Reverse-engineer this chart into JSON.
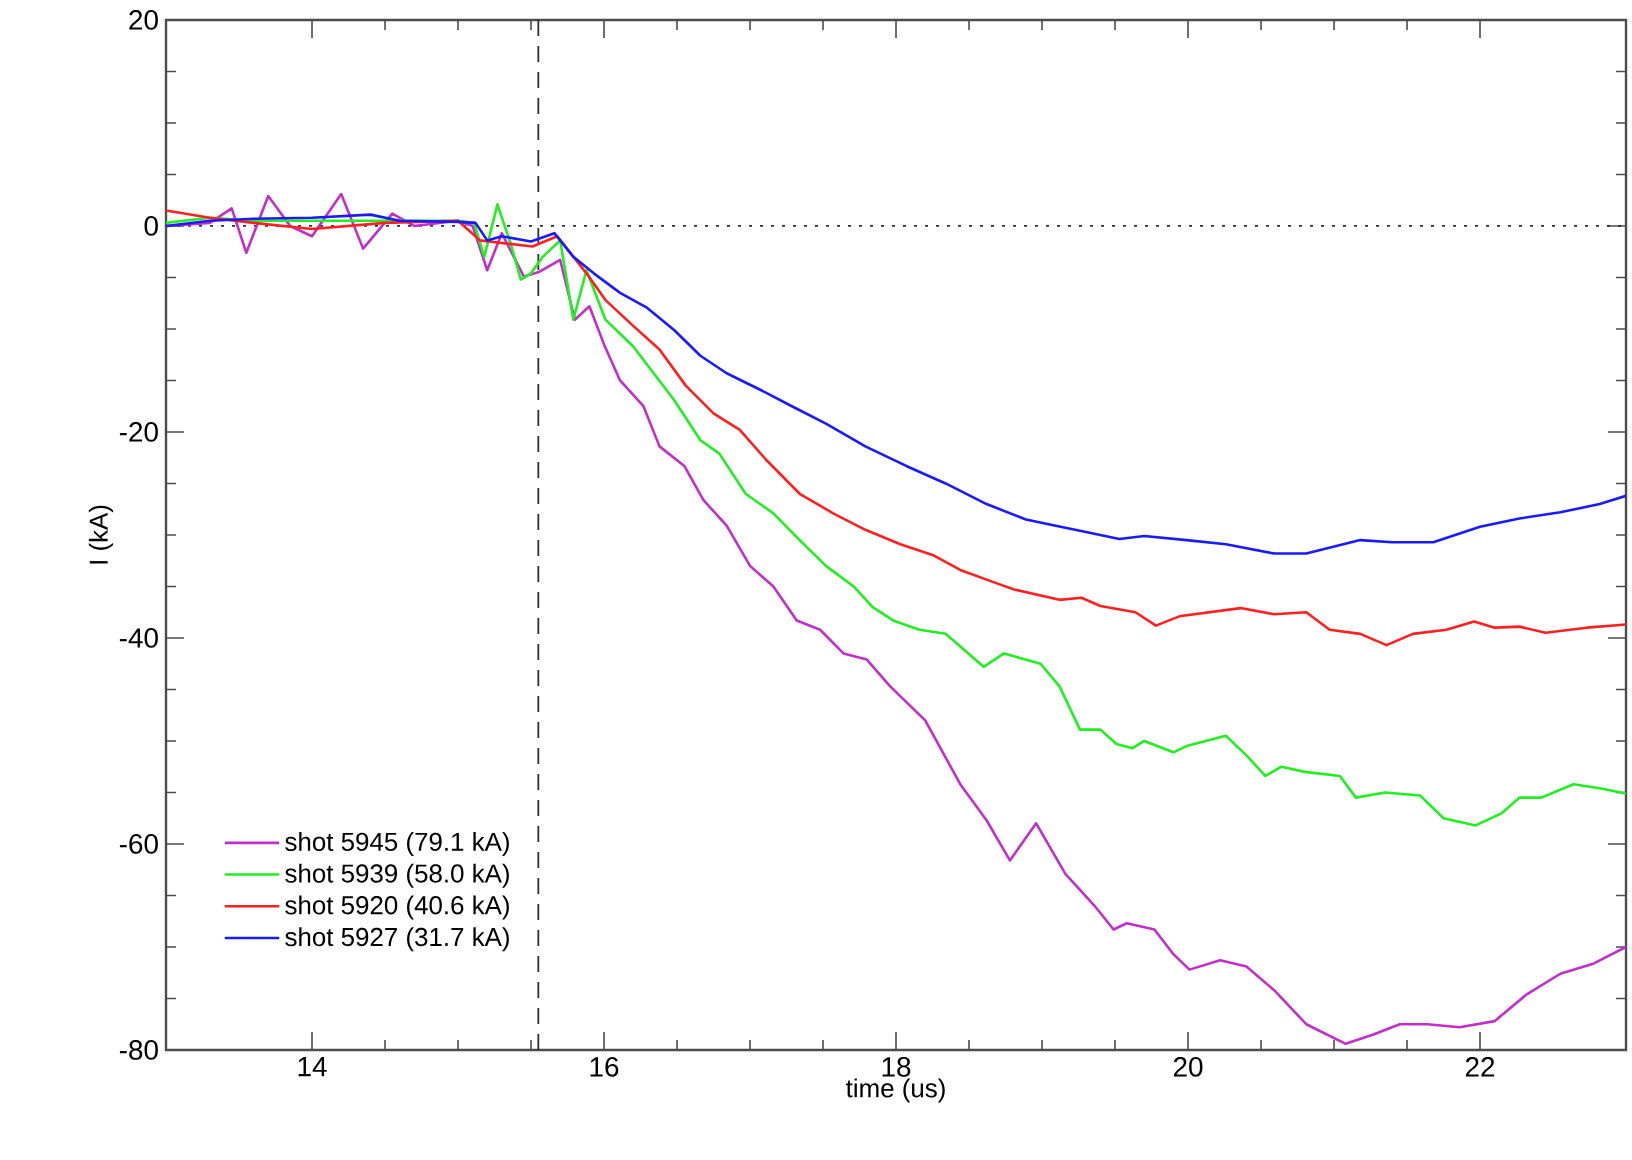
{
  "chart_data": {
    "type": "line",
    "xlabel": "time (us)",
    "ylabel": "I (kA)",
    "xlim": [
      13,
      23
    ],
    "ylim": [
      -80,
      20
    ],
    "xticks": [
      14,
      16,
      18,
      20,
      22
    ],
    "yticks": [
      -80,
      -60,
      -40,
      -20,
      0,
      20
    ],
    "legend": "bottom left",
    "line_style": "solid",
    "ref_lines": [
      {
        "axis": "x",
        "value": 15.55,
        "line_style": "dashed",
        "color": "#303030"
      },
      {
        "axis": "y",
        "value": 0,
        "line_style": "dotted",
        "color": "#303030"
      }
    ],
    "series": [
      {
        "name": "shot 5945 (79.1 kA)",
        "color": "#c030c8",
        "x": [
          13,
          13.3,
          13.45,
          13.55,
          13.7,
          13.85,
          14.0,
          14.2,
          14.35,
          14.55,
          14.7,
          15.0,
          15.1,
          15.2,
          15.3,
          15.45,
          15.55,
          15.7,
          15.8,
          15.9,
          16.0,
          16.11,
          16.27,
          16.38,
          16.55,
          16.68,
          16.84,
          17.0,
          17.16,
          17.32,
          17.48,
          17.64,
          17.8,
          17.96,
          18.2,
          18.44,
          18.62,
          18.78,
          18.96,
          19.16,
          19.36,
          19.49,
          19.58,
          19.77,
          19.9,
          20.01,
          20.22,
          20.4,
          20.59,
          20.81,
          21.08,
          21.27,
          21.45,
          21.64,
          21.86,
          22.1,
          22.32,
          22.55,
          22.78,
          23
        ],
        "values": [
          0,
          0.3,
          1.7,
          -2.6,
          2.9,
          0,
          -1,
          3.1,
          -2.2,
          1.2,
          0,
          0.5,
          0,
          -4.3,
          -0.7,
          -4.9,
          -4.5,
          -3.3,
          -9.1,
          -7.8,
          -11.5,
          -15,
          -17.5,
          -21.4,
          -23.3,
          -26.6,
          -29.1,
          -33,
          -35,
          -38.3,
          -39.2,
          -41.5,
          -42.1,
          -44.7,
          -48,
          -54.2,
          -57.7,
          -61.6,
          -58,
          -62.9,
          -66,
          -68.3,
          -67.7,
          -68.3,
          -70.7,
          -72.2,
          -71.3,
          -71.9,
          -74.2,
          -77.5,
          -79.4,
          -78.5,
          -77.5,
          -77.5,
          -77.8,
          -77.2,
          -74.6,
          -72.6,
          -71.6,
          -70
        ]
      },
      {
        "name": "shot 5939 (58.0 kA)",
        "color": "#22ee22",
        "x": [
          13,
          13.3,
          13.6,
          14,
          14.5,
          15,
          15.11,
          15.18,
          15.27,
          15.36,
          15.43,
          15.5,
          15.58,
          15.7,
          15.79,
          15.88,
          16.01,
          16.2,
          16.34,
          16.48,
          16.66,
          16.79,
          16.97,
          17.16,
          17.34,
          17.52,
          17.71,
          17.84,
          17.98,
          18.16,
          18.34,
          18.6,
          18.74,
          18.99,
          19.12,
          19.26,
          19.4,
          19.51,
          19.62,
          19.7,
          19.9,
          19.99,
          20.26,
          20.4,
          20.53,
          20.64,
          20.8,
          21.04,
          21.15,
          21.35,
          21.59,
          21.75,
          21.97,
          22.15,
          22.27,
          22.42,
          22.64,
          22.82,
          23
        ],
        "values": [
          0.3,
          0.8,
          0.5,
          0.5,
          0.5,
          0.5,
          0.3,
          -3,
          2.1,
          -1.7,
          -5.2,
          -4.6,
          -3,
          -1.4,
          -9.1,
          -4.3,
          -9.1,
          -11.7,
          -14.3,
          -16.9,
          -20.8,
          -22.1,
          -26,
          -27.9,
          -30.5,
          -33,
          -35,
          -37,
          -38.3,
          -39.2,
          -39.6,
          -42.8,
          -41.5,
          -42.5,
          -44.7,
          -48.9,
          -48.9,
          -50.3,
          -50.7,
          -50,
          -51.1,
          -50.5,
          -49.5,
          -51.4,
          -53.4,
          -52.5,
          -53,
          -53.4,
          -55.5,
          -55,
          -55.3,
          -57.5,
          -58.2,
          -57,
          -55.5,
          -55.5,
          -54.2,
          -54.6,
          -55.1
        ]
      },
      {
        "name": "shot 5920 (40.6 kA)",
        "color": "#ff2020",
        "x": [
          13,
          13.3,
          13.6,
          14,
          14.5,
          15,
          15.15,
          15.33,
          15.51,
          15.68,
          15.88,
          16.01,
          16.2,
          16.38,
          16.56,
          16.75,
          16.93,
          17.11,
          17.34,
          17.57,
          17.79,
          18.03,
          18.26,
          18.44,
          18.71,
          18.81,
          19.12,
          19.27,
          19.4,
          19.64,
          19.78,
          19.94,
          20.36,
          20.59,
          20.81,
          20.97,
          21.18,
          21.36,
          21.54,
          21.77,
          21.96,
          22.1,
          22.27,
          22.45,
          22.73,
          23
        ],
        "values": [
          1.5,
          0.8,
          0.3,
          -0.3,
          0.3,
          0.5,
          -1.4,
          -1.7,
          -2,
          -1,
          -4.6,
          -7.2,
          -9.7,
          -12,
          -15.5,
          -18.2,
          -19.8,
          -22.7,
          -26,
          -27.9,
          -29.5,
          -30.9,
          -32,
          -33.4,
          -34.8,
          -35.3,
          -36.3,
          -36.1,
          -36.9,
          -37.5,
          -38.8,
          -37.9,
          -37.1,
          -37.7,
          -37.5,
          -39.2,
          -39.6,
          -40.7,
          -39.6,
          -39.2,
          -38.4,
          -39,
          -38.9,
          -39.5,
          -39,
          -38.7
        ]
      },
      {
        "name": "shot 5927 (31.7 kA)",
        "color": "#1a1aff",
        "x": [
          13,
          13.3,
          13.6,
          14,
          14.4,
          14.6,
          15,
          15.12,
          15.2,
          15.3,
          15.5,
          15.66,
          15.79,
          15.93,
          16.11,
          16.29,
          16.48,
          16.66,
          16.84,
          17.07,
          17.3,
          17.52,
          17.79,
          18.07,
          18.34,
          18.62,
          18.89,
          19.16,
          19.26,
          19.53,
          19.7,
          19.99,
          20.26,
          20.59,
          20.81,
          21.18,
          21.4,
          21.68,
          22.0,
          22.27,
          22.55,
          22.82,
          23
        ],
        "values": [
          0,
          0.5,
          0.7,
          0.8,
          1.1,
          0.5,
          0.4,
          0.3,
          -1.4,
          -1,
          -1.5,
          -0.7,
          -3,
          -4.6,
          -6.5,
          -7.9,
          -10.1,
          -12.6,
          -14.3,
          -15.9,
          -17.6,
          -19.2,
          -21.4,
          -23.3,
          -25,
          -27,
          -28.5,
          -29.3,
          -29.6,
          -30.4,
          -30.1,
          -30.5,
          -30.9,
          -31.8,
          -31.8,
          -30.5,
          -30.7,
          -30.7,
          -29.2,
          -28.4,
          -27.8,
          -27,
          -26.2
        ]
      }
    ]
  }
}
